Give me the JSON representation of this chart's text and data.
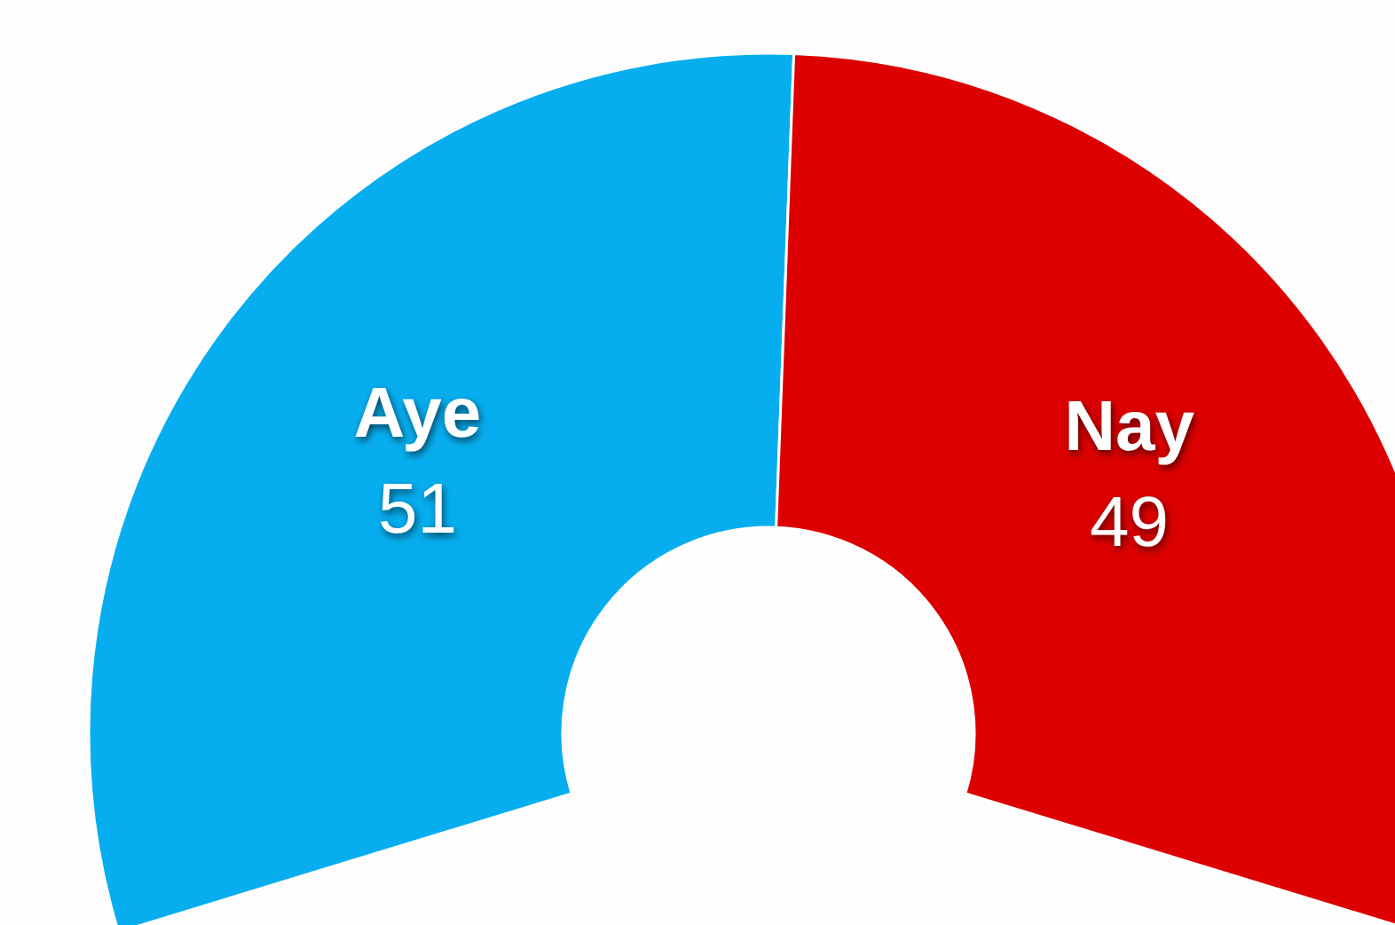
{
  "chart_data": {
    "type": "donut",
    "categories": [
      "Aye",
      "Nay"
    ],
    "values": [
      51,
      49
    ],
    "colors": [
      "#07aeef",
      "#dd0000"
    ],
    "data_labels": true
  }
}
